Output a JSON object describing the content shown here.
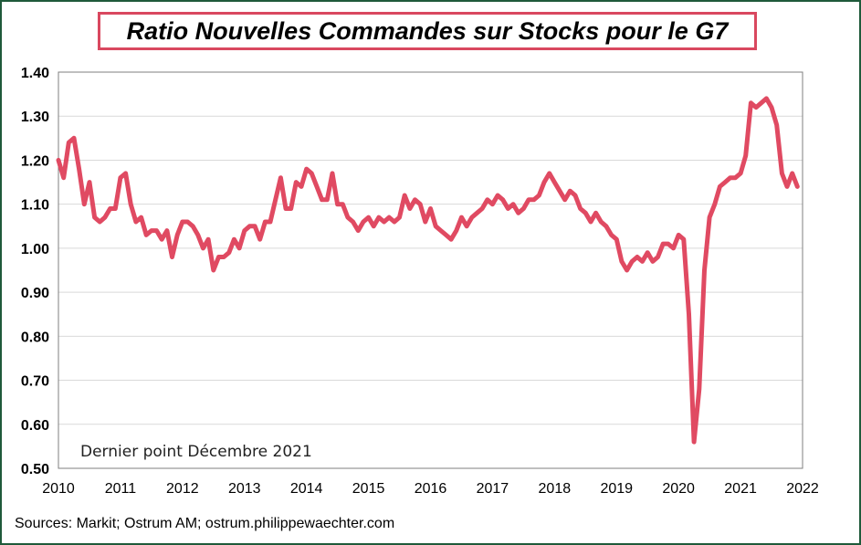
{
  "title": "Ratio Nouvelles Commandes sur Stocks pour le G7",
  "source": "Sources: Markit;  Ostrum AM; ostrum.philippewaechter.com",
  "colors": {
    "line": "#e04a62",
    "title_border": "#d9485f",
    "frame": "#1f5a3a",
    "grid": "#d9d9d9"
  },
  "chart_data": {
    "type": "line",
    "title": "Ratio Nouvelles Commandes sur Stocks pour le G7",
    "xlabel": "",
    "ylabel": "",
    "annotation": "Dernier point Décembre 2021",
    "xlim": [
      2010,
      2022
    ],
    "ylim": [
      0.5,
      1.4
    ],
    "grid": "horizontal",
    "x_ticks": [
      "2010",
      "2011",
      "2012",
      "2013",
      "2014",
      "2015",
      "2016",
      "2017",
      "2018",
      "2019",
      "2020",
      "2021",
      "2022"
    ],
    "y_ticks": [
      "0.50",
      "0.60",
      "0.70",
      "0.80",
      "0.90",
      "1.00",
      "1.10",
      "1.20",
      "1.30",
      "1.40"
    ],
    "series": [
      {
        "values": [
          1.2,
          1.16,
          1.24,
          1.25,
          1.18,
          1.1,
          1.15,
          1.07,
          1.06,
          1.07,
          1.09,
          1.09,
          1.16,
          1.17,
          1.1,
          1.06,
          1.07,
          1.03,
          1.04,
          1.04,
          1.02,
          1.04,
          0.98,
          1.03,
          1.06,
          1.06,
          1.05,
          1.03,
          1.0,
          1.02,
          0.95,
          0.98,
          0.98,
          0.99,
          1.02,
          1.0,
          1.04,
          1.05,
          1.05,
          1.02,
          1.06,
          1.06,
          1.11,
          1.16,
          1.09,
          1.09,
          1.15,
          1.14,
          1.18,
          1.17,
          1.14,
          1.11,
          1.11,
          1.17,
          1.1,
          1.1,
          1.07,
          1.06,
          1.04,
          1.06,
          1.07,
          1.05,
          1.07,
          1.06,
          1.07,
          1.06,
          1.07,
          1.12,
          1.09,
          1.11,
          1.1,
          1.06,
          1.09,
          1.05,
          1.04,
          1.03,
          1.02,
          1.04,
          1.07,
          1.05,
          1.07,
          1.08,
          1.09,
          1.11,
          1.1,
          1.12,
          1.11,
          1.09,
          1.1,
          1.08,
          1.09,
          1.11,
          1.11,
          1.12,
          1.15,
          1.17,
          1.15,
          1.13,
          1.11,
          1.13,
          1.12,
          1.09,
          1.08,
          1.06,
          1.08,
          1.06,
          1.05,
          1.03,
          1.02,
          0.97,
          0.95,
          0.97,
          0.98,
          0.97,
          0.99,
          0.97,
          0.98,
          1.01,
          1.01,
          1.0,
          1.03,
          1.02,
          0.85,
          0.56,
          0.68,
          0.95,
          1.07,
          1.1,
          1.14,
          1.15,
          1.16,
          1.16,
          1.17,
          1.21,
          1.33,
          1.32,
          1.33,
          1.34,
          1.32,
          1.28,
          1.17,
          1.14,
          1.17,
          1.14
        ]
      }
    ]
  }
}
